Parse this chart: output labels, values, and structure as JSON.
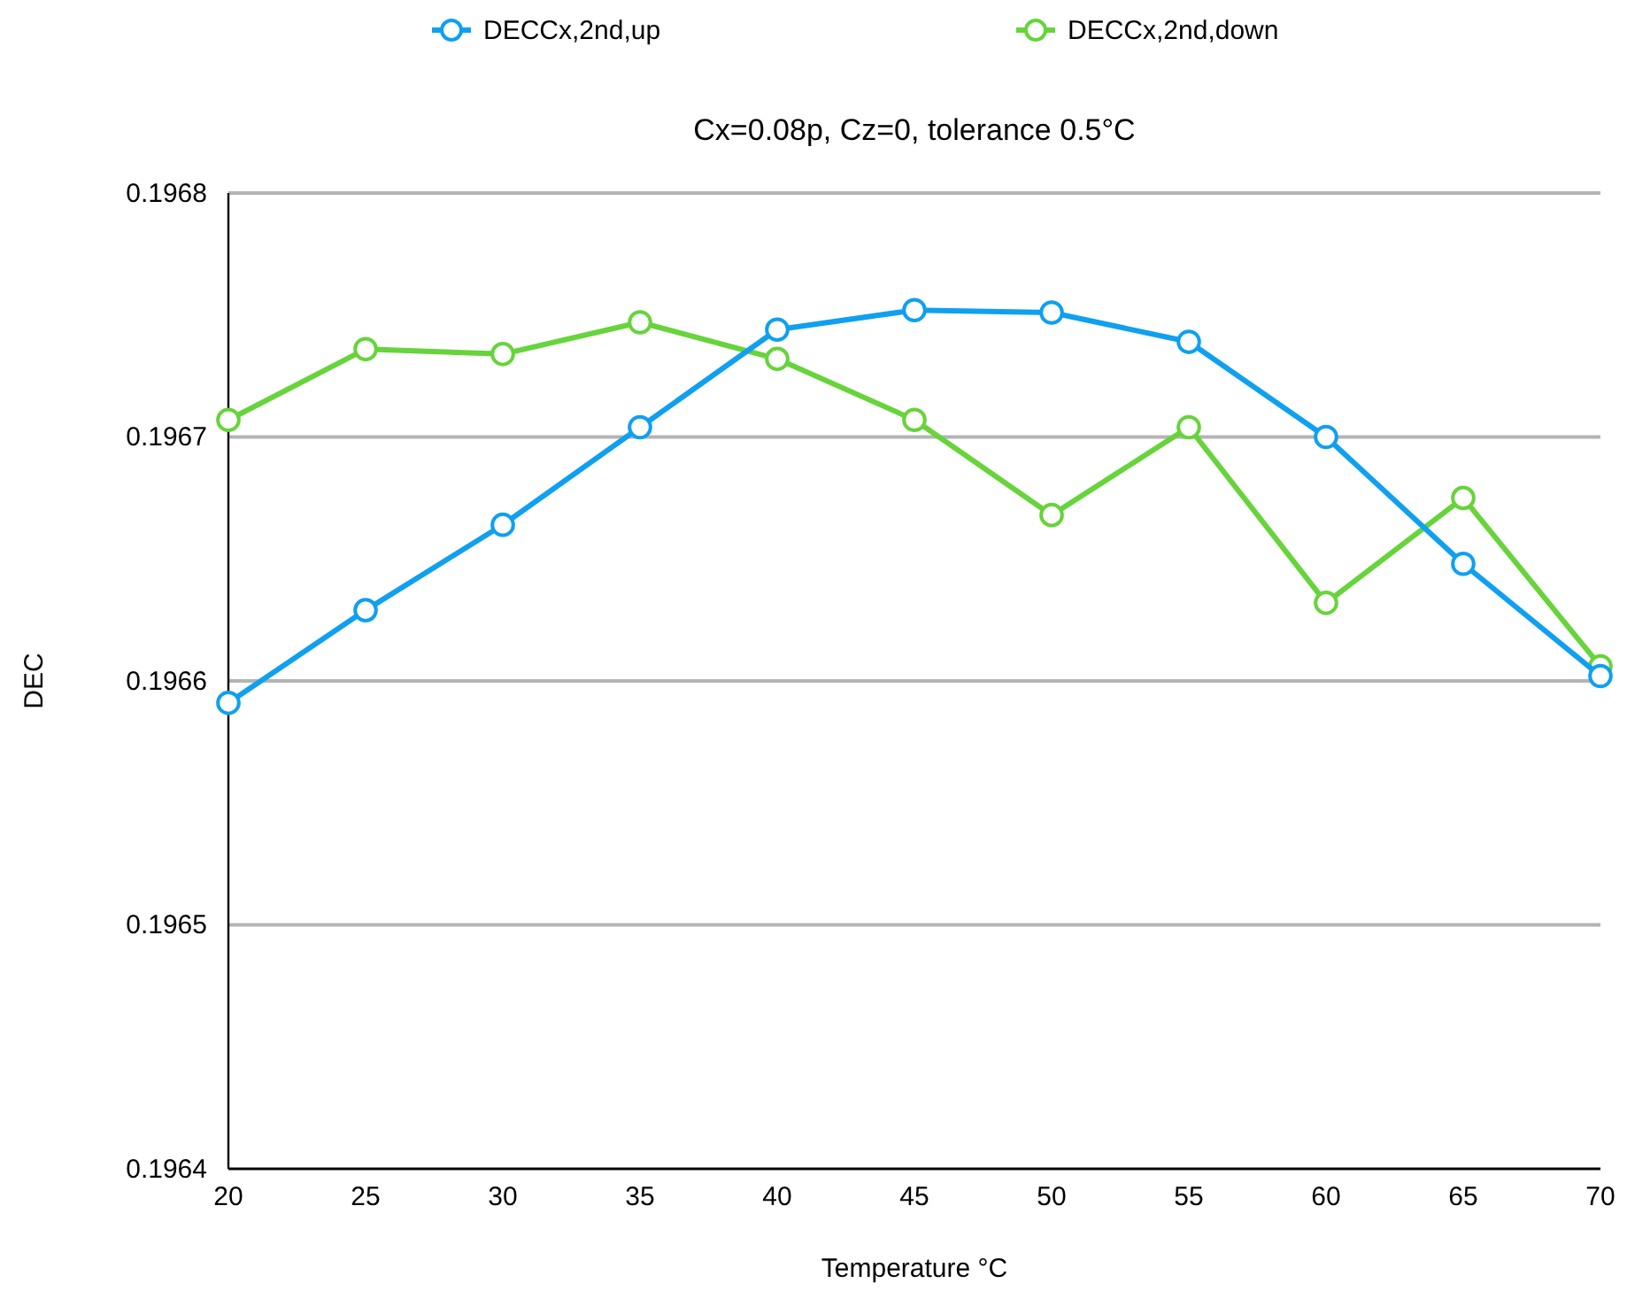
{
  "chart_data": {
    "type": "line",
    "title": "Cx=0.08p, Cz=0, tolerance 0.5°C",
    "xlabel": "Temperature °C",
    "ylabel": "DEC",
    "x": [
      20,
      25,
      30,
      35,
      40,
      45,
      50,
      55,
      60,
      65,
      70
    ],
    "series": [
      {
        "name": "DECCx,2nd,up",
        "color": "#0fa0f0",
        "values": [
          0.196591,
          0.196629,
          0.196664,
          0.196704,
          0.196744,
          0.196752,
          0.196751,
          0.196739,
          0.1967,
          0.196648,
          0.196602
        ]
      },
      {
        "name": "DECCx,2nd,down",
        "color": "#66d43a",
        "values": [
          0.196707,
          0.196736,
          0.196734,
          0.196747,
          0.196732,
          0.196707,
          0.196668,
          0.196704,
          0.196632,
          0.196675,
          0.196606
        ]
      }
    ],
    "xlim": [
      20,
      70
    ],
    "xticks": [
      20,
      25,
      30,
      35,
      40,
      45,
      50,
      55,
      60,
      65,
      70
    ],
    "ylim": [
      0.1964,
      0.1968
    ],
    "yticks": [
      0.1964,
      0.1965,
      0.1966,
      0.1967,
      0.1968
    ],
    "grid": "y",
    "legend": "top",
    "marker": "circle",
    "line_style": "solid"
  }
}
